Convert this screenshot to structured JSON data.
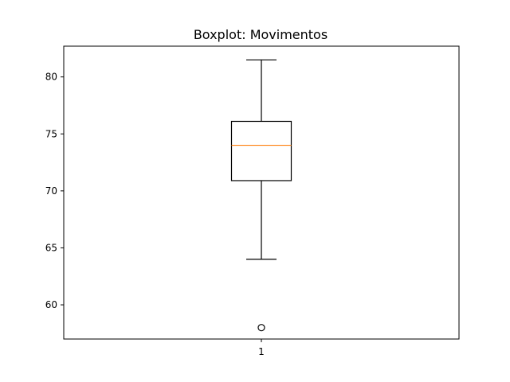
{
  "chart_data": {
    "type": "boxplot",
    "title": "Boxplot: Movimentos",
    "xlabel": "",
    "ylabel": "",
    "categories": [
      "1"
    ],
    "series": [
      {
        "whisker_low": 64,
        "q1": 70.9,
        "median": 74,
        "q3": 76.1,
        "whisker_high": 81.5,
        "outliers": [
          58
        ]
      }
    ],
    "ylim": [
      57,
      82.7
    ],
    "yticks": [
      60,
      65,
      70,
      75,
      80
    ],
    "grid": false,
    "colors": {
      "box": "#000000",
      "median": "#ff7f0e",
      "outlier_edge": "#000000"
    }
  }
}
